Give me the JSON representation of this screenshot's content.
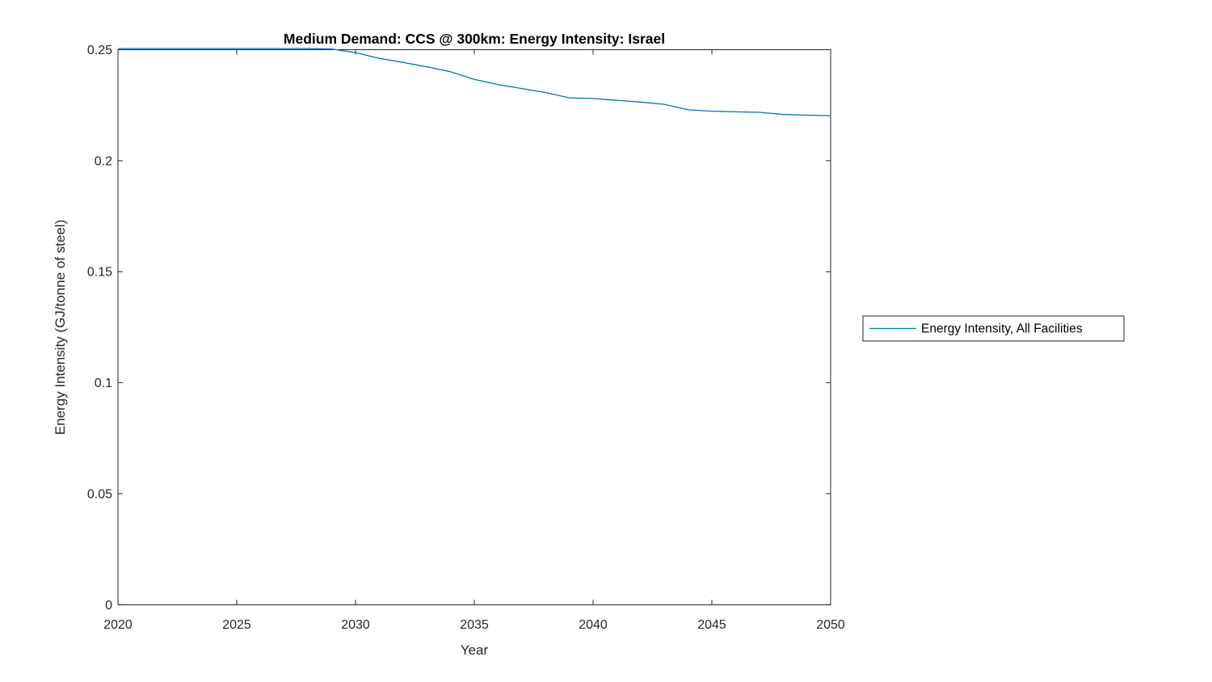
{
  "chart_data": {
    "type": "line",
    "title": "Medium Demand: CCS @ 300km: Energy Intensity: Israel",
    "xlabel": "Year",
    "ylabel": "Energy Intensity (GJ/tonne of steel)",
    "xlim": [
      2020,
      2050
    ],
    "ylim": [
      0,
      0.25
    ],
    "xticks": [
      2020,
      2025,
      2030,
      2035,
      2040,
      2045,
      2050
    ],
    "xtick_labels": [
      "2020",
      "2025",
      "2030",
      "2035",
      "2040",
      "2045",
      "2050"
    ],
    "yticks": [
      0,
      0.05,
      0.1,
      0.15,
      0.2,
      0.25
    ],
    "ytick_labels": [
      "0",
      "0.05",
      "0.1",
      "0.15",
      "0.2",
      "0.25"
    ],
    "grid": false,
    "box": true,
    "tick_direction": "in",
    "legend_position": "outside-right",
    "line_color": "#0072BD",
    "axis_color": "#262626",
    "x": [
      2020,
      2021,
      2022,
      2023,
      2024,
      2025,
      2026,
      2027,
      2028,
      2029,
      2030,
      2031,
      2032,
      2033,
      2034,
      2035,
      2036,
      2037,
      2038,
      2039,
      2040,
      2041,
      2042,
      2043,
      2044,
      2045,
      2046,
      2047,
      2048,
      2049,
      2050
    ],
    "series": [
      {
        "name": "Energy Intensity, All Facilities",
        "values": [
          0.2505,
          0.2505,
          0.2505,
          0.2505,
          0.2505,
          0.2505,
          0.2505,
          0.2505,
          0.2505,
          0.2503,
          0.2487,
          0.2461,
          0.2443,
          0.2423,
          0.2401,
          0.2366,
          0.2343,
          0.2325,
          0.2307,
          0.2283,
          0.228,
          0.2272,
          0.2264,
          0.2254,
          0.2229,
          0.2223,
          0.222,
          0.2218,
          0.2208,
          0.2205,
          0.2203
        ]
      }
    ]
  }
}
